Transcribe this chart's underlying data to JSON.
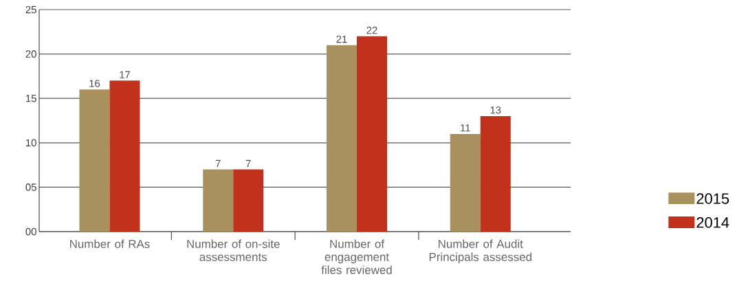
{
  "chart_data": {
    "type": "bar",
    "categories": [
      "Number of RAs",
      "Number of on-site assessments",
      "Number of engagement files reviewed",
      "Number of Audit Principals assessed"
    ],
    "series": [
      {
        "name": "2015",
        "color": "#a8915f",
        "values": [
          16,
          7,
          21,
          11
        ]
      },
      {
        "name": "2014",
        "color": "#c1311b",
        "values": [
          17,
          7,
          22,
          13
        ]
      }
    ],
    "ylim": [
      0,
      25
    ],
    "yticks": [
      {
        "value": 0,
        "label": "00"
      },
      {
        "value": 5,
        "label": "05"
      },
      10,
      15,
      20,
      25
    ],
    "grid": "y",
    "legend": "right",
    "data_labels": true
  }
}
